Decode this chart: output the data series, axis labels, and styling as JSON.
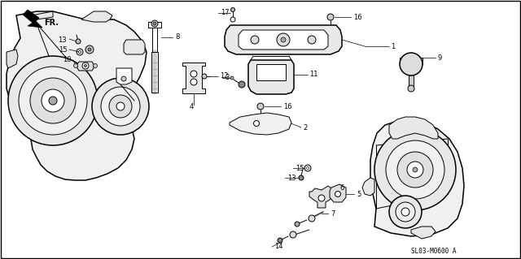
{
  "background_color": "#f5f5f5",
  "border_color": "#000000",
  "fig_width": 6.4,
  "fig_height": 3.19,
  "dpi": 100,
  "diagram_code": "SL03-M0600 A",
  "fr_label": "FR.",
  "lw_main": 1.1,
  "lw_detail": 0.7,
  "lw_leader": 0.5,
  "label_fs": 6.0
}
